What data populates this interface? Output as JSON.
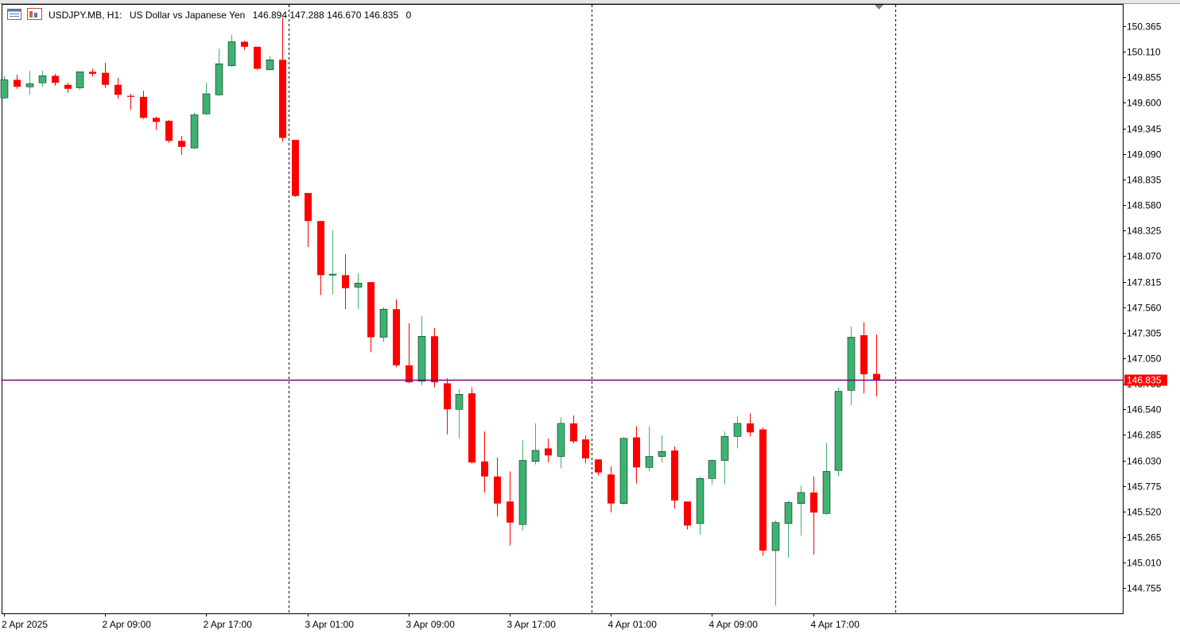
{
  "header": {
    "symbol": "USDJPY.MB, H1:",
    "description": "US Dollar vs Japanese Yen",
    "ohlc": "146.894 147.288 146.670 146.835",
    "volume": "0"
  },
  "colors": {
    "bull": "#3cb371",
    "bear": "#ff0000",
    "price_line": "#800080",
    "price_label_bg": "#ff0000",
    "price_label_text": "#ffffff",
    "separator": "#000000"
  },
  "icons": [
    "chart-window-icon",
    "indicator-list-icon",
    "shift-marker-icon"
  ],
  "chart_data": {
    "type": "candlestick",
    "symbol": "USDJPY.MB",
    "timeframe": "H1",
    "ylim": [
      144.55,
      150.5
    ],
    "y_ticks": [
      "150.365",
      "150.110",
      "149.855",
      "149.600",
      "149.345",
      "149.090",
      "148.835",
      "148.580",
      "148.325",
      "148.070",
      "147.815",
      "147.560",
      "147.305",
      "147.050",
      "146.795",
      "146.540",
      "146.285",
      "146.030",
      "145.775",
      "145.520",
      "145.265",
      "145.010",
      "144.755"
    ],
    "x_labels": [
      "2 Apr 2025",
      "2 Apr 09:00",
      "2 Apr 17:00",
      "3 Apr 01:00",
      "3 Apr 09:00",
      "3 Apr 17:00",
      "4 Apr 01:00",
      "4 Apr 09:00",
      "4 Apr 17:00"
    ],
    "x_label_bars": [
      0,
      8,
      16,
      24,
      32,
      40,
      48,
      56,
      64
    ],
    "day_separators_after_bar": [
      22.5,
      46.5,
      70.5
    ],
    "current_price": "146.835",
    "current_price_value": 146.835,
    "candles": [
      {
        "o": 149.65,
        "h": 149.87,
        "l": 149.64,
        "c": 149.83
      },
      {
        "o": 149.83,
        "h": 149.88,
        "l": 149.74,
        "c": 149.76
      },
      {
        "o": 149.76,
        "h": 149.92,
        "l": 149.68,
        "c": 149.79
      },
      {
        "o": 149.8,
        "h": 149.92,
        "l": 149.76,
        "c": 149.87
      },
      {
        "o": 149.87,
        "h": 149.89,
        "l": 149.77,
        "c": 149.8
      },
      {
        "o": 149.78,
        "h": 149.8,
        "l": 149.7,
        "c": 149.74
      },
      {
        "o": 149.75,
        "h": 149.91,
        "l": 149.73,
        "c": 149.91
      },
      {
        "o": 149.91,
        "h": 149.94,
        "l": 149.86,
        "c": 149.89
      },
      {
        "o": 149.9,
        "h": 150.0,
        "l": 149.75,
        "c": 149.78
      },
      {
        "o": 149.78,
        "h": 149.85,
        "l": 149.64,
        "c": 149.68
      },
      {
        "o": 149.67,
        "h": 149.69,
        "l": 149.53,
        "c": 149.66
      },
      {
        "o": 149.66,
        "h": 149.72,
        "l": 149.44,
        "c": 149.45
      },
      {
        "o": 149.45,
        "h": 149.46,
        "l": 149.33,
        "c": 149.41
      },
      {
        "o": 149.42,
        "h": 149.43,
        "l": 149.2,
        "c": 149.22
      },
      {
        "o": 149.22,
        "h": 149.27,
        "l": 149.08,
        "c": 149.16
      },
      {
        "o": 149.15,
        "h": 149.5,
        "l": 149.14,
        "c": 149.48
      },
      {
        "o": 149.49,
        "h": 149.8,
        "l": 149.48,
        "c": 149.69
      },
      {
        "o": 149.68,
        "h": 150.14,
        "l": 149.67,
        "c": 149.99
      },
      {
        "o": 149.97,
        "h": 150.28,
        "l": 149.96,
        "c": 150.21
      },
      {
        "o": 150.21,
        "h": 150.22,
        "l": 150.13,
        "c": 150.16
      },
      {
        "o": 150.16,
        "h": 150.16,
        "l": 149.93,
        "c": 149.94
      },
      {
        "o": 149.93,
        "h": 150.07,
        "l": 149.93,
        "c": 150.03
      },
      {
        "o": 150.03,
        "h": 150.45,
        "l": 149.21,
        "c": 149.25
      },
      {
        "o": 149.23,
        "h": 149.23,
        "l": 148.66,
        "c": 148.67
      },
      {
        "o": 148.7,
        "h": 148.7,
        "l": 148.16,
        "c": 148.42
      },
      {
        "o": 148.42,
        "h": 148.42,
        "l": 147.68,
        "c": 147.88
      },
      {
        "o": 147.88,
        "h": 148.33,
        "l": 147.69,
        "c": 147.89
      },
      {
        "o": 147.88,
        "h": 148.09,
        "l": 147.54,
        "c": 147.75
      },
      {
        "o": 147.76,
        "h": 147.9,
        "l": 147.54,
        "c": 147.8
      },
      {
        "o": 147.81,
        "h": 147.81,
        "l": 147.11,
        "c": 147.26
      },
      {
        "o": 147.26,
        "h": 147.56,
        "l": 147.21,
        "c": 147.54
      },
      {
        "o": 147.54,
        "h": 147.64,
        "l": 146.96,
        "c": 146.98
      },
      {
        "o": 146.98,
        "h": 147.4,
        "l": 146.8,
        "c": 146.81
      },
      {
        "o": 146.82,
        "h": 147.47,
        "l": 146.78,
        "c": 147.27
      },
      {
        "o": 147.27,
        "h": 147.35,
        "l": 146.76,
        "c": 146.81
      },
      {
        "o": 146.8,
        "h": 146.85,
        "l": 146.29,
        "c": 146.54
      },
      {
        "o": 146.54,
        "h": 146.74,
        "l": 146.25,
        "c": 146.69
      },
      {
        "o": 146.7,
        "h": 146.76,
        "l": 146.0,
        "c": 146.01
      },
      {
        "o": 146.02,
        "h": 146.32,
        "l": 145.71,
        "c": 145.87
      },
      {
        "o": 145.87,
        "h": 146.06,
        "l": 145.47,
        "c": 145.6
      },
      {
        "o": 145.62,
        "h": 145.92,
        "l": 145.18,
        "c": 145.41
      },
      {
        "o": 145.39,
        "h": 146.23,
        "l": 145.33,
        "c": 146.03
      },
      {
        "o": 146.02,
        "h": 146.4,
        "l": 145.99,
        "c": 146.13
      },
      {
        "o": 146.15,
        "h": 146.25,
        "l": 146.01,
        "c": 146.08
      },
      {
        "o": 146.07,
        "h": 146.46,
        "l": 145.95,
        "c": 146.4
      },
      {
        "o": 146.4,
        "h": 146.48,
        "l": 146.2,
        "c": 146.22
      },
      {
        "o": 146.24,
        "h": 146.28,
        "l": 146.0,
        "c": 146.05
      },
      {
        "o": 146.04,
        "h": 146.04,
        "l": 145.88,
        "c": 145.91
      },
      {
        "o": 145.89,
        "h": 145.97,
        "l": 145.51,
        "c": 145.6
      },
      {
        "o": 145.6,
        "h": 146.26,
        "l": 145.59,
        "c": 146.25
      },
      {
        "o": 146.26,
        "h": 146.37,
        "l": 145.8,
        "c": 145.96
      },
      {
        "o": 145.96,
        "h": 146.37,
        "l": 145.92,
        "c": 146.07
      },
      {
        "o": 146.07,
        "h": 146.28,
        "l": 146.01,
        "c": 146.12
      },
      {
        "o": 146.13,
        "h": 146.17,
        "l": 145.55,
        "c": 145.63
      },
      {
        "o": 145.62,
        "h": 145.62,
        "l": 145.34,
        "c": 145.38
      },
      {
        "o": 145.4,
        "h": 145.87,
        "l": 145.29,
        "c": 145.85
      },
      {
        "o": 145.85,
        "h": 146.04,
        "l": 145.79,
        "c": 146.03
      },
      {
        "o": 146.03,
        "h": 146.32,
        "l": 145.79,
        "c": 146.27
      },
      {
        "o": 146.27,
        "h": 146.47,
        "l": 146.15,
        "c": 146.4
      },
      {
        "o": 146.4,
        "h": 146.5,
        "l": 146.27,
        "c": 146.31
      },
      {
        "o": 146.34,
        "h": 146.36,
        "l": 145.08,
        "c": 145.13
      },
      {
        "o": 145.13,
        "h": 145.43,
        "l": 144.58,
        "c": 145.41
      },
      {
        "o": 145.4,
        "h": 145.63,
        "l": 145.06,
        "c": 145.61
      },
      {
        "o": 145.6,
        "h": 145.78,
        "l": 145.28,
        "c": 145.71
      },
      {
        "o": 145.71,
        "h": 145.87,
        "l": 145.09,
        "c": 145.51
      },
      {
        "o": 145.5,
        "h": 146.2,
        "l": 145.49,
        "c": 145.92
      },
      {
        "o": 145.93,
        "h": 146.76,
        "l": 145.87,
        "c": 146.72
      },
      {
        "o": 146.73,
        "h": 147.37,
        "l": 146.58,
        "c": 147.26
      },
      {
        "o": 147.28,
        "h": 147.41,
        "l": 146.7,
        "c": 146.89
      },
      {
        "o": 146.894,
        "h": 147.288,
        "l": 146.67,
        "c": 146.835
      }
    ]
  }
}
